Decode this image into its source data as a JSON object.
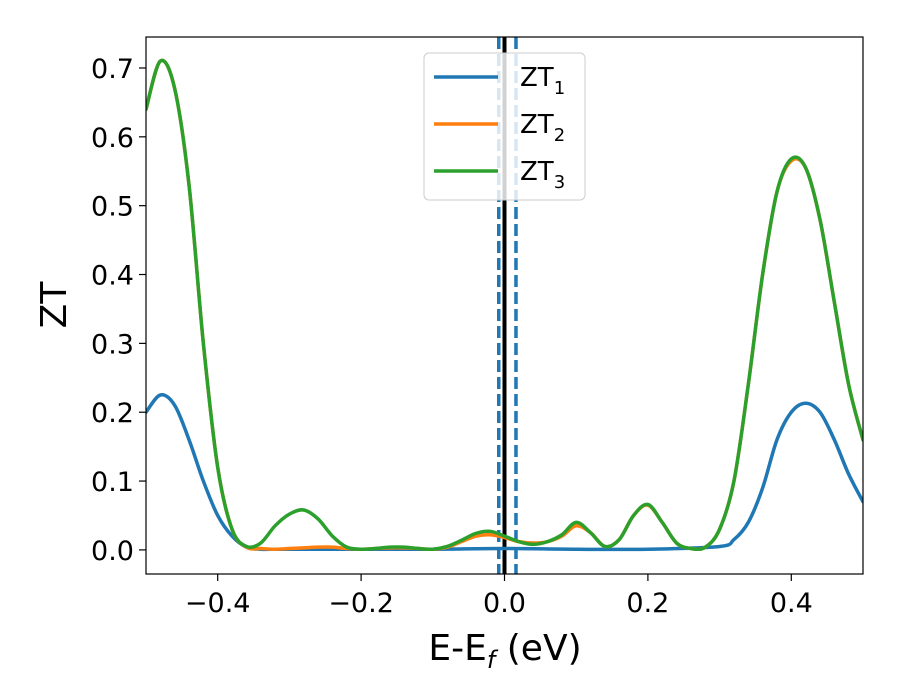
{
  "chart_data": {
    "type": "line",
    "title": "",
    "xlabel_main": "E-E",
    "xlabel_sub": "f",
    "xlabel_unit": " (eV)",
    "ylabel": "ZT",
    "xlim": [
      -0.5,
      0.5
    ],
    "ylim": [
      -0.035,
      0.745
    ],
    "xticks": [
      -0.4,
      -0.2,
      0.0,
      0.2,
      0.4
    ],
    "xtick_labels": [
      "−0.4",
      "−0.2",
      "0.0",
      "0.2",
      "0.4"
    ],
    "yticks": [
      0.0,
      0.1,
      0.2,
      0.3,
      0.4,
      0.5,
      0.6,
      0.7
    ],
    "ytick_labels": [
      "0.0",
      "0.1",
      "0.2",
      "0.3",
      "0.4",
      "0.5",
      "0.6",
      "0.7"
    ],
    "grid": false,
    "legend_position": "top-center",
    "series": [
      {
        "name": "ZT",
        "subscript": "1",
        "color": "#1f77b4",
        "x": [
          -0.5,
          -0.48,
          -0.46,
          -0.44,
          -0.42,
          -0.4,
          -0.38,
          -0.36,
          -0.34,
          -0.32,
          -0.3,
          -0.2,
          -0.1,
          0.0,
          0.1,
          0.2,
          0.3,
          0.32,
          0.34,
          0.36,
          0.38,
          0.4,
          0.42,
          0.44,
          0.46,
          0.48,
          0.5
        ],
        "y": [
          0.2,
          0.225,
          0.21,
          0.16,
          0.1,
          0.05,
          0.02,
          0.004,
          0.001,
          0.001,
          0.001,
          0.001,
          0.001,
          0.002,
          0.001,
          0.001,
          0.005,
          0.015,
          0.04,
          0.09,
          0.16,
          0.2,
          0.213,
          0.2,
          0.16,
          0.11,
          0.07
        ]
      },
      {
        "name": "ZT",
        "subscript": "2",
        "color": "#ff7f0e",
        "x": [
          -0.5,
          -0.48,
          -0.46,
          -0.44,
          -0.42,
          -0.4,
          -0.38,
          -0.36,
          -0.34,
          -0.32,
          -0.3,
          -0.28,
          -0.26,
          -0.24,
          -0.22,
          -0.2,
          -0.18,
          -0.16,
          -0.14,
          -0.12,
          -0.1,
          -0.08,
          -0.06,
          -0.04,
          -0.02,
          0.0,
          0.02,
          0.04,
          0.06,
          0.08,
          0.1,
          0.12,
          0.14,
          0.16,
          0.18,
          0.2,
          0.22,
          0.24,
          0.26,
          0.28,
          0.3,
          0.32,
          0.34,
          0.36,
          0.38,
          0.4,
          0.42,
          0.44,
          0.46,
          0.48,
          0.5
        ],
        "y": [
          0.64,
          0.71,
          0.67,
          0.53,
          0.3,
          0.12,
          0.03,
          0.004,
          0.002,
          0.001,
          0.002,
          0.003,
          0.004,
          0.004,
          0.002,
          0.001,
          0.002,
          0.003,
          0.003,
          0.002,
          0.001,
          0.004,
          0.012,
          0.02,
          0.022,
          0.018,
          0.012,
          0.01,
          0.012,
          0.02,
          0.035,
          0.025,
          0.005,
          0.015,
          0.05,
          0.065,
          0.04,
          0.01,
          0.002,
          0.004,
          0.03,
          0.1,
          0.24,
          0.4,
          0.52,
          0.565,
          0.555,
          0.48,
          0.36,
          0.24,
          0.16
        ]
      },
      {
        "name": "ZT",
        "subscript": "3",
        "color": "#2ca02c",
        "x": [
          -0.5,
          -0.48,
          -0.46,
          -0.44,
          -0.42,
          -0.4,
          -0.38,
          -0.36,
          -0.34,
          -0.32,
          -0.3,
          -0.28,
          -0.26,
          -0.24,
          -0.22,
          -0.2,
          -0.18,
          -0.16,
          -0.14,
          -0.12,
          -0.1,
          -0.08,
          -0.06,
          -0.04,
          -0.02,
          0.0,
          0.02,
          0.04,
          0.06,
          0.08,
          0.1,
          0.12,
          0.14,
          0.16,
          0.18,
          0.2,
          0.22,
          0.24,
          0.26,
          0.28,
          0.3,
          0.32,
          0.34,
          0.36,
          0.38,
          0.4,
          0.42,
          0.44,
          0.46,
          0.48,
          0.5
        ],
        "y": [
          0.64,
          0.71,
          0.67,
          0.53,
          0.3,
          0.12,
          0.03,
          0.005,
          0.01,
          0.035,
          0.052,
          0.058,
          0.045,
          0.02,
          0.004,
          0.001,
          0.002,
          0.004,
          0.004,
          0.002,
          0.001,
          0.005,
          0.014,
          0.024,
          0.027,
          0.02,
          0.012,
          0.008,
          0.012,
          0.022,
          0.04,
          0.025,
          0.005,
          0.015,
          0.05,
          0.066,
          0.04,
          0.01,
          0.002,
          0.004,
          0.03,
          0.1,
          0.24,
          0.4,
          0.52,
          0.568,
          0.555,
          0.48,
          0.36,
          0.24,
          0.16
        ]
      }
    ],
    "vlines": [
      {
        "x": 0.0,
        "color": "#000000",
        "style": "solid"
      },
      {
        "x": -0.008,
        "color": "#1f77b4",
        "style": "dashed"
      },
      {
        "x": 0.016,
        "color": "#1f77b4",
        "style": "dashed"
      }
    ]
  }
}
